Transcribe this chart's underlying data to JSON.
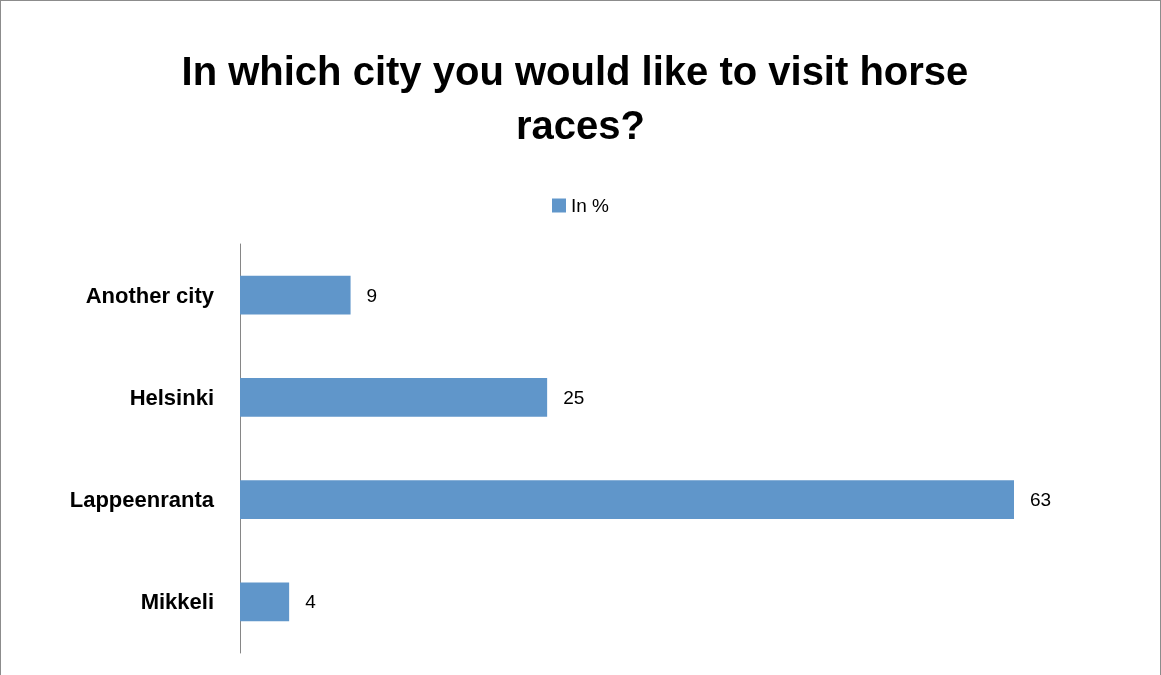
{
  "chart_data": {
    "type": "bar",
    "orientation": "horizontal",
    "title": "In which city you would like to visit horse races?",
    "categories": [
      "Another city",
      "Helsinki",
      "Lappeenranta",
      "Mikkeli"
    ],
    "series": [
      {
        "name": "In %",
        "color": "#6096ca",
        "values": [
          9,
          25,
          63,
          4
        ]
      }
    ],
    "data_labels": true,
    "legend": "top"
  }
}
